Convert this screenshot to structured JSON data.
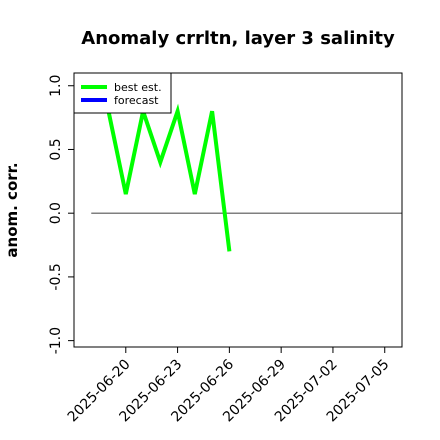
{
  "chart_data": {
    "type": "line",
    "title": "Anomaly crrltn, layer 3 salinity",
    "ylabel": "anom. corr.",
    "xlabel": "",
    "ylim": [
      -1.05,
      1.1
    ],
    "xlim": [
      "2025-06-17",
      "2025-07-06"
    ],
    "yticks": [
      1.0,
      0.5,
      0.0,
      -0.5,
      -1.0
    ],
    "ytick_labels": [
      "1.0",
      "0.5",
      "0.0",
      "-0.5",
      "-1.0"
    ],
    "xticks": [
      "2025-06-20",
      "2025-06-23",
      "2025-06-26",
      "2025-06-29",
      "2025-07-02",
      "2025-07-05"
    ],
    "highlight_tick": "2025-06-26",
    "highlight_color": "#2e7d32",
    "zero_line": {
      "y": 0,
      "from": "2025-06-18",
      "to": "2025-07-06",
      "color": "#555555"
    },
    "series": [
      {
        "name": "best est.",
        "color": "#00ff00",
        "x": [
          "2025-06-19",
          "2025-06-20",
          "2025-06-21",
          "2025-06-22",
          "2025-06-23",
          "2025-06-24",
          "2025-06-25",
          "2025-06-26"
        ],
        "y": [
          0.8,
          0.15,
          0.8,
          0.4,
          0.8,
          0.15,
          0.8,
          -0.3
        ]
      },
      {
        "name": "forecast",
        "color": "#0000ff",
        "x": [],
        "y": []
      }
    ],
    "legend": {
      "position": "top-left",
      "entries": [
        "best est.",
        "forecast"
      ]
    },
    "grid": false
  }
}
